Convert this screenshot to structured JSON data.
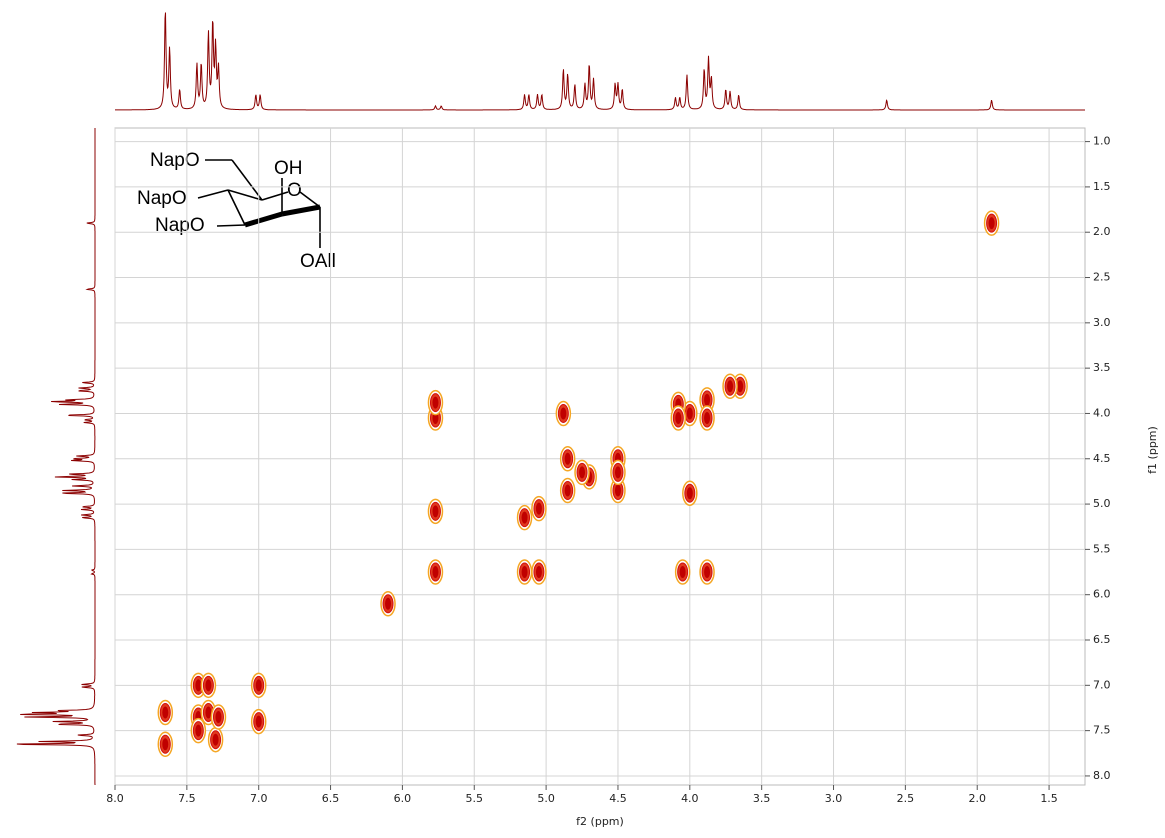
{
  "chart_data": {
    "type": "scatter",
    "x_label": "f2 (ppm)",
    "y_label": "f1 (ppm)",
    "xlim": [
      8.0,
      1.25
    ],
    "ylim": [
      0.85,
      8.1
    ],
    "xticks": [
      {
        "value": 8.0,
        "label": "8.0"
      },
      {
        "value": 7.5,
        "label": "7.5"
      },
      {
        "value": 7.0,
        "label": "7.0"
      },
      {
        "value": 6.5,
        "label": "6.5"
      },
      {
        "value": 6.0,
        "label": "6.0"
      },
      {
        "value": 5.5,
        "label": "5.5"
      },
      {
        "value": 5.0,
        "label": "5.0"
      },
      {
        "value": 4.5,
        "label": "4.5"
      },
      {
        "value": 4.0,
        "label": "4.0"
      },
      {
        "value": 3.5,
        "label": "3.5"
      },
      {
        "value": 3.0,
        "label": "3.0"
      },
      {
        "value": 2.5,
        "label": "2.5"
      },
      {
        "value": 2.0,
        "label": "2.0"
      },
      {
        "value": 1.5,
        "label": "1.5"
      }
    ],
    "yticks": [
      {
        "value": 1.0,
        "label": "1.0"
      },
      {
        "value": 1.5,
        "label": "1.5"
      },
      {
        "value": 2.0,
        "label": "2.0"
      },
      {
        "value": 2.5,
        "label": "2.5"
      },
      {
        "value": 3.0,
        "label": "3.0"
      },
      {
        "value": 3.5,
        "label": "3.5"
      },
      {
        "value": 4.0,
        "label": "4.0"
      },
      {
        "value": 4.5,
        "label": "4.5"
      },
      {
        "value": 5.0,
        "label": "5.0"
      },
      {
        "value": 5.5,
        "label": "5.5"
      },
      {
        "value": 6.0,
        "label": "6.0"
      },
      {
        "value": 6.5,
        "label": "6.5"
      },
      {
        "value": 7.0,
        "label": "7.0"
      },
      {
        "value": 7.5,
        "label": "7.5"
      },
      {
        "value": 8.0,
        "label": "8.0"
      }
    ],
    "grid": true,
    "peak_color": "#c00000",
    "rim_color": "#f5a623",
    "projection_color": "#8b0000",
    "x": [
      1.9,
      3.65,
      3.72,
      3.88,
      3.88,
      4.0,
      4.08,
      4.08,
      4.5,
      4.5,
      4.5,
      4.7,
      4.75,
      4.85,
      4.85,
      4.88,
      4.0,
      5.05,
      5.15,
      5.05,
      5.15,
      5.77,
      5.77,
      5.77,
      5.77,
      4.05,
      3.88,
      6.1,
      7.65,
      7.65,
      7.42,
      7.42,
      7.42,
      7.35,
      7.3,
      7.28,
      7.0,
      7.0,
      7.35
    ],
    "y": [
      1.9,
      3.7,
      3.7,
      3.85,
      4.05,
      4.0,
      3.9,
      4.05,
      4.5,
      4.85,
      4.65,
      4.7,
      4.65,
      4.5,
      4.85,
      4.0,
      4.88,
      5.05,
      5.15,
      5.75,
      5.75,
      5.08,
      5.75,
      4.05,
      3.88,
      5.75,
      5.75,
      6.1,
      7.3,
      7.65,
      7.0,
      7.35,
      7.5,
      7.3,
      7.6,
      7.35,
      7.0,
      7.4,
      7.0
    ],
    "projection": {
      "x": [
        7.65,
        7.62,
        7.55,
        7.43,
        7.4,
        7.35,
        7.32,
        7.3,
        7.28,
        7.02,
        6.99,
        5.77,
        5.73,
        5.15,
        5.12,
        5.06,
        5.03,
        4.88,
        4.85,
        4.8,
        4.73,
        4.7,
        4.67,
        4.52,
        4.5,
        4.47,
        4.1,
        4.07,
        4.02,
        3.9,
        3.87,
        3.85,
        3.75,
        3.72,
        3.66,
        2.63,
        1.9
      ],
      "height": [
        100,
        60,
        20,
        45,
        45,
        75,
        85,
        60,
        40,
        15,
        15,
        4,
        4,
        15,
        15,
        15,
        15,
        40,
        35,
        25,
        25,
        45,
        30,
        25,
        25,
        20,
        12,
        12,
        35,
        40,
        50,
        30,
        20,
        18,
        15,
        10,
        10
      ]
    },
    "annotations": [
      "NapO",
      "OH",
      "O",
      "NapO",
      "NapO",
      "OAll"
    ]
  }
}
